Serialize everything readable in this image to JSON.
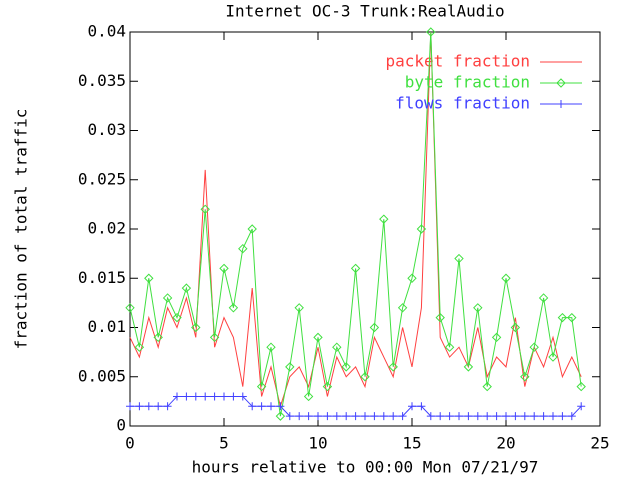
{
  "chart_data": {
    "type": "line",
    "title": "Internet OC-3 Trunk:RealAudio",
    "xlabel": "hours relative to 00:00 Mon 07/21/97",
    "ylabel": "fraction of total traffic",
    "x": [
      0,
      0.5,
      1,
      1.5,
      2,
      2.5,
      3,
      3.5,
      4,
      4.5,
      5,
      5.5,
      6,
      6.5,
      7,
      7.5,
      8,
      8.5,
      9,
      9.5,
      10,
      10.5,
      11,
      11.5,
      12,
      12.5,
      13,
      13.5,
      14,
      14.5,
      15,
      15.5,
      16,
      16.5,
      17,
      17.5,
      18,
      18.5,
      19,
      19.5,
      20,
      20.5,
      21,
      21.5,
      22,
      22.5,
      23,
      23.5,
      24
    ],
    "series": [
      {
        "name": "packet fraction",
        "color": "#ff4040",
        "marker": "none",
        "values": [
          0.009,
          0.007,
          0.011,
          0.008,
          0.012,
          0.01,
          0.013,
          0.009,
          0.026,
          0.008,
          0.011,
          0.009,
          0.004,
          0.014,
          0.003,
          0.006,
          0.002,
          0.005,
          0.006,
          0.004,
          0.008,
          0.003,
          0.007,
          0.005,
          0.006,
          0.004,
          0.009,
          0.007,
          0.005,
          0.01,
          0.006,
          0.012,
          0.04,
          0.009,
          0.007,
          0.008,
          0.006,
          0.01,
          0.005,
          0.007,
          0.006,
          0.011,
          0.004,
          0.008,
          0.006,
          0.009,
          0.005,
          0.007,
          0.005
        ]
      },
      {
        "name": "byte fraction",
        "color": "#40e040",
        "marker": "diamond",
        "values": [
          0.012,
          0.008,
          0.015,
          0.009,
          0.013,
          0.011,
          0.014,
          0.01,
          0.022,
          0.009,
          0.016,
          0.012,
          0.018,
          0.02,
          0.004,
          0.008,
          0.001,
          0.006,
          0.012,
          0.003,
          0.009,
          0.004,
          0.008,
          0.006,
          0.016,
          0.005,
          0.01,
          0.021,
          0.006,
          0.012,
          0.015,
          0.02,
          0.04,
          0.011,
          0.008,
          0.017,
          0.006,
          0.012,
          0.004,
          0.009,
          0.015,
          0.01,
          0.005,
          0.008,
          0.013,
          0.007,
          0.011,
          0.011,
          0.004
        ]
      },
      {
        "name": "flows fraction",
        "color": "#4040ff",
        "marker": "plus",
        "values": [
          0.002,
          0.002,
          0.002,
          0.002,
          0.002,
          0.003,
          0.003,
          0.003,
          0.003,
          0.003,
          0.003,
          0.003,
          0.003,
          0.002,
          0.002,
          0.002,
          0.002,
          0.001,
          0.001,
          0.001,
          0.001,
          0.001,
          0.001,
          0.001,
          0.001,
          0.001,
          0.001,
          0.001,
          0.001,
          0.001,
          0.002,
          0.002,
          0.001,
          0.001,
          0.001,
          0.001,
          0.001,
          0.001,
          0.001,
          0.001,
          0.001,
          0.001,
          0.001,
          0.001,
          0.001,
          0.001,
          0.001,
          0.001,
          0.002
        ]
      }
    ],
    "xlim": [
      0,
      25
    ],
    "xticks": [
      0,
      5,
      10,
      15,
      20,
      25
    ],
    "ylim": [
      0,
      0.04
    ],
    "yticks": [
      0,
      0.005,
      0.01,
      0.015,
      0.02,
      0.025,
      0.03,
      0.035,
      0.04
    ],
    "legend": "top-right",
    "grid": false
  }
}
